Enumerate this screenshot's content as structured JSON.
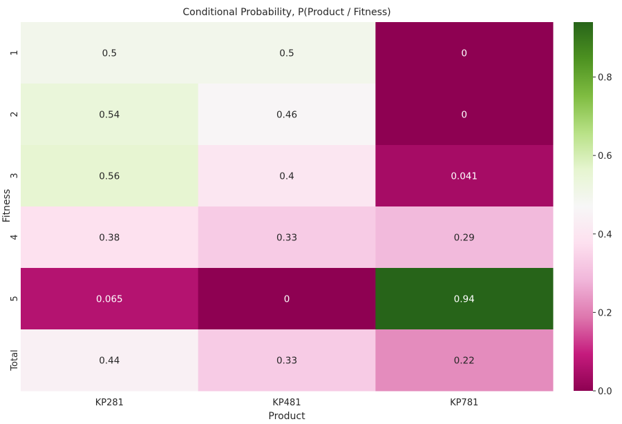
{
  "chart_data": {
    "type": "heatmap",
    "title": "Conditional Probability, P(Product / Fitness)",
    "xlabel": "Product",
    "ylabel": "Fitness",
    "x_categories": [
      "KP281",
      "KP481",
      "KP781"
    ],
    "y_categories": [
      "1",
      "2",
      "3",
      "4",
      "5",
      "Total"
    ],
    "values": [
      [
        0.5,
        0.5,
        0
      ],
      [
        0.54,
        0.46,
        0
      ],
      [
        0.56,
        0.4,
        0.041
      ],
      [
        0.38,
        0.33,
        0.29
      ],
      [
        0.065,
        0,
        0.94
      ],
      [
        0.44,
        0.33,
        0.22
      ]
    ],
    "annotations": [
      [
        "0.5",
        "0.5",
        "0"
      ],
      [
        "0.54",
        "0.46",
        "0"
      ],
      [
        "0.56",
        "0.4",
        "0.041"
      ],
      [
        "0.38",
        "0.33",
        "0.29"
      ],
      [
        "0.065",
        "0",
        "0.94"
      ],
      [
        "0.44",
        "0.33",
        "0.22"
      ]
    ],
    "colormap": "PiYG",
    "value_range": [
      0,
      0.94
    ],
    "colorbar": {
      "ticks": [
        0.0,
        0.2,
        0.4,
        0.6,
        0.8
      ],
      "tick_labels": [
        "0.0",
        "0.2",
        "0.4",
        "0.6",
        "0.8"
      ],
      "placement": "right"
    },
    "grid": false
  }
}
